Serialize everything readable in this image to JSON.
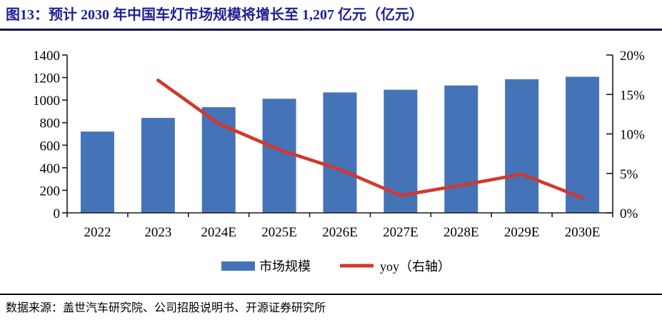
{
  "header": {
    "title": "图13：预计 2030 年中国车灯市场规模将增长至 1,207 亿元（亿元）"
  },
  "footer": {
    "source": "数据来源：盖世汽车研究院、公司招股说明书、开源证券研究所"
  },
  "colors": {
    "bar": "#4573b8",
    "line": "#d3382b",
    "title": "#1f1f96",
    "axis": "#1a1a1a",
    "title_rule": "#13134a",
    "footer_rule": "#000000"
  },
  "chart_data": {
    "type": "bar",
    "title": "预计 2030 年中国车灯市场规模将增长至 1,207 亿元（亿元）",
    "figure_label": "图13",
    "categories": [
      "2022",
      "2023",
      "2024E",
      "2025E",
      "2026E",
      "2027E",
      "2028E",
      "2029E",
      "2030E"
    ],
    "series": [
      {
        "name": "市场规模",
        "type": "bar",
        "axis": "left",
        "color": "#4573b8",
        "values": [
          721,
          842,
          937,
          1012,
          1068,
          1092,
          1130,
          1185,
          1207
        ]
      },
      {
        "name": "yoy（右轴）",
        "type": "line",
        "axis": "right",
        "color": "#d3382b",
        "values": [
          null,
          16.8,
          11.3,
          8.0,
          5.5,
          2.2,
          3.5,
          4.9,
          1.9
        ]
      }
    ],
    "left_axis": {
      "min": 0,
      "max": 1400,
      "ticks": [
        0,
        200,
        400,
        600,
        800,
        1000,
        1200,
        1400
      ],
      "suffix": ""
    },
    "right_axis": {
      "min": 0,
      "max": 20,
      "ticks": [
        0,
        5,
        10,
        15,
        20
      ],
      "suffix": "%"
    },
    "xlabel": "",
    "ylabel": "",
    "grid": false,
    "legend_position": "bottom"
  }
}
